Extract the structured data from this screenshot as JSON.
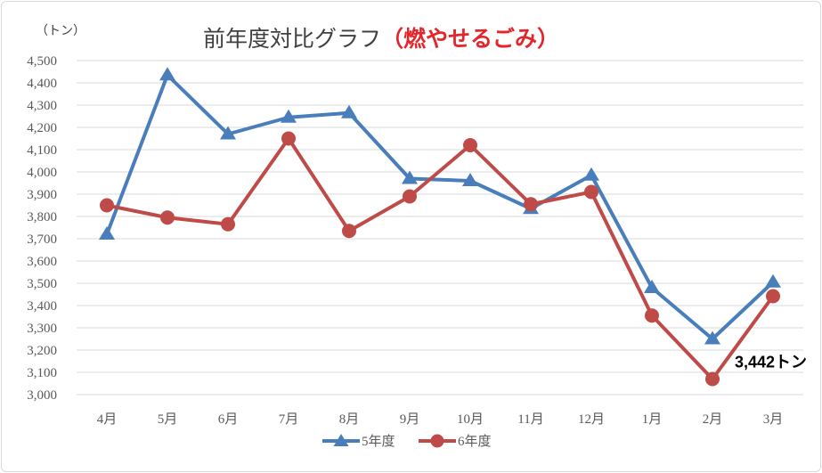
{
  "chart_data": {
    "type": "line",
    "title": "前年度対比グラフ",
    "subtitle": "（燃やせるごみ）",
    "ylabel": "（トン）",
    "xlabel": "",
    "categories": [
      "4月",
      "5月",
      "6月",
      "7月",
      "8月",
      "9月",
      "10月",
      "11月",
      "12月",
      "1月",
      "2月",
      "3月"
    ],
    "ylim": [
      3000,
      4500
    ],
    "yticks": [
      3000,
      3100,
      3200,
      3300,
      3400,
      3500,
      3600,
      3700,
      3800,
      3900,
      4000,
      4100,
      4200,
      4300,
      4400,
      4500
    ],
    "ytick_labels": [
      "3,000",
      "3,100",
      "3,200",
      "3,300",
      "3,400",
      "3,500",
      "3,600",
      "3,700",
      "3,800",
      "3,900",
      "4,000",
      "4,100",
      "4,200",
      "4,300",
      "4,400",
      "4,500"
    ],
    "grid": true,
    "legend_position": "bottom",
    "series": [
      {
        "name": "5年度",
        "marker": "triangle",
        "color": "#4a7ebb",
        "values": [
          3720,
          4435,
          4170,
          4245,
          4265,
          3970,
          3960,
          3835,
          3985,
          3480,
          3250,
          3505
        ]
      },
      {
        "name": "6年度",
        "marker": "circle",
        "color": "#be4b48",
        "values": [
          3850,
          3795,
          3765,
          4150,
          3735,
          3890,
          4120,
          3855,
          3910,
          3355,
          3070,
          3442
        ]
      }
    ],
    "annotations": [
      {
        "text": "3,442トン",
        "series": "6年度",
        "category": "3月"
      }
    ]
  }
}
